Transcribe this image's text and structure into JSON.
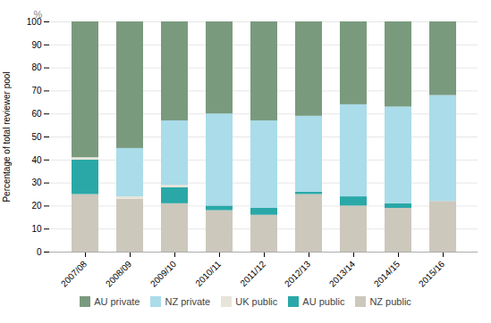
{
  "chart_data": {
    "type": "bar",
    "stacked": true,
    "categories": [
      "2007/08",
      "2008/09",
      "2009/10",
      "2010/11",
      "2011/12",
      "2012/13",
      "2013/14",
      "2014/15",
      "2015/16"
    ],
    "series": [
      {
        "name": "NZ public",
        "color": "#ccc8bc",
        "values": [
          25,
          23,
          21,
          18,
          16,
          25,
          20,
          19,
          22
        ]
      },
      {
        "name": "AU public",
        "color": "#2aa8a8",
        "values": [
          15,
          0,
          7,
          2,
          3,
          1,
          4,
          2,
          0
        ]
      },
      {
        "name": "UK public",
        "color": "#e8e4da",
        "values": [
          1,
          1,
          1,
          0,
          0,
          0,
          0,
          0,
          0
        ]
      },
      {
        "name": "NZ private",
        "color": "#aadcea",
        "values": [
          0,
          21,
          28,
          40,
          38,
          33,
          40,
          42,
          46
        ]
      },
      {
        "name": "AU private",
        "color": "#7a9a7e",
        "values": [
          59,
          55,
          43,
          40,
          43,
          41,
          36,
          37,
          32
        ]
      }
    ],
    "ylabel": "Percentage of total reviewer pool",
    "annotations": [
      "%"
    ],
    "ylim": [
      0,
      100
    ],
    "yticks": [
      0,
      10,
      20,
      30,
      40,
      50,
      60,
      70,
      80,
      90,
      100
    ],
    "grid": true,
    "legend": "bottom"
  }
}
